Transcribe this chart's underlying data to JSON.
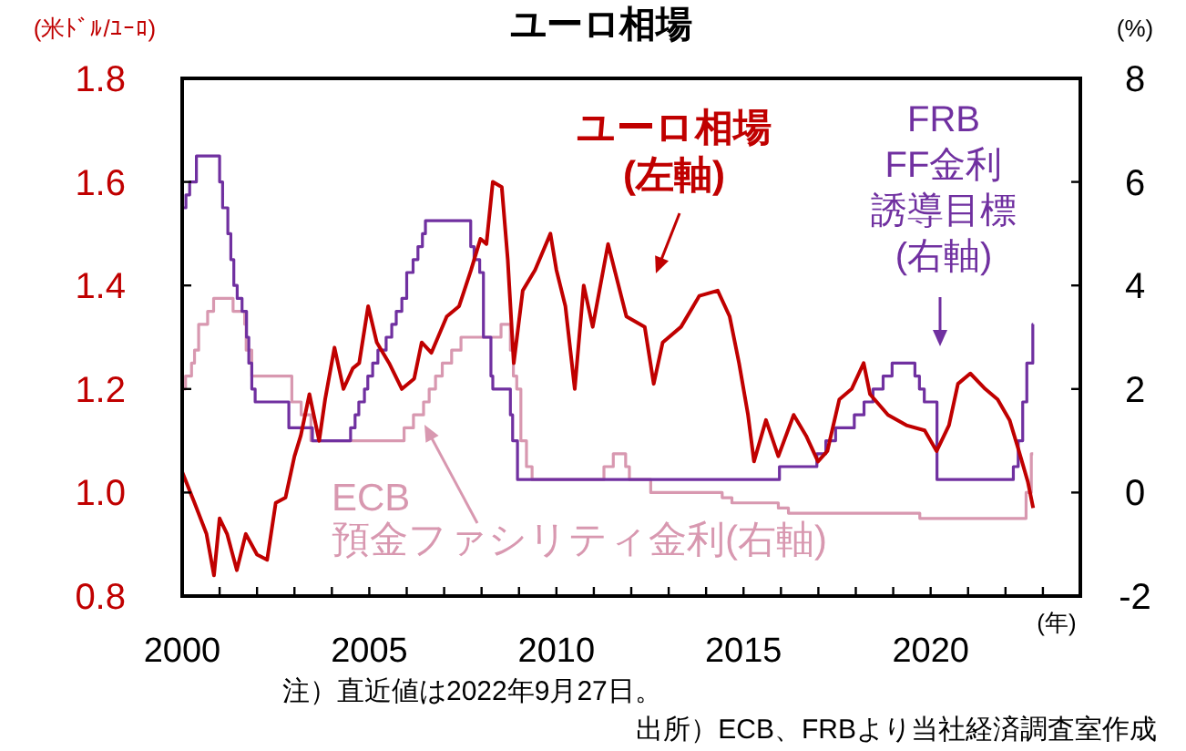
{
  "chart_data": {
    "type": "line",
    "title": "ユーロ相場",
    "ylabel": "(米ﾄﾞﾙ/ﾕｰﾛ)",
    "y2label": "(%)",
    "xlabel": "(年)",
    "xlim": [
      2000,
      2024
    ],
    "xticks": [
      2000,
      {
        "value": 2001,
        "label": null
      },
      {
        "value": 2002,
        "label": null
      },
      {
        "value": 2003,
        "label": null
      },
      {
        "value": 2004,
        "label": null
      },
      2005,
      {
        "value": 2006,
        "label": null
      },
      {
        "value": 2007,
        "label": null
      },
      {
        "value": 2008,
        "label": null
      },
      {
        "value": 2009,
        "label": null
      },
      2010,
      {
        "value": 2011,
        "label": null
      },
      {
        "value": 2012,
        "label": null
      },
      {
        "value": 2013,
        "label": null
      },
      {
        "value": 2014,
        "label": null
      },
      2015,
      {
        "value": 2016,
        "label": null
      },
      {
        "value": 2017,
        "label": null
      },
      {
        "value": 2018,
        "label": null
      },
      {
        "value": 2019,
        "label": null
      },
      2020,
      {
        "value": 2021,
        "label": null
      },
      {
        "value": 2022,
        "label": null
      },
      {
        "value": 2023,
        "label": null
      }
    ],
    "ylim": [
      0.8,
      1.8
    ],
    "yticks": [
      {
        "value": 0.8,
        "label": "0.8"
      },
      {
        "value": 1.0,
        "label": "1.0"
      },
      {
        "value": 1.2,
        "label": "1.2"
      },
      {
        "value": 1.4,
        "label": "1.4"
      },
      {
        "value": 1.6,
        "label": "1.6"
      },
      {
        "value": 1.8,
        "label": "1.8"
      }
    ],
    "y2lim": [
      -2,
      8
    ],
    "y2ticks": [
      -2,
      0,
      2,
      4,
      6,
      8
    ],
    "grid": false,
    "series": [
      {
        "name": "ECB 預金ファシリティ金利(右軸)",
        "type": "step",
        "axis": "y2",
        "color": "#d898b0",
        "x": [
          2000.0,
          2000.09,
          2000.25,
          2000.33,
          2000.44,
          2000.68,
          2000.84,
          2001.36,
          2001.67,
          2001.71,
          2001.86,
          2002.93,
          2003.18,
          2003.44,
          2005.93,
          2006.18,
          2006.45,
          2006.6,
          2006.77,
          2006.95,
          2007.2,
          2007.45,
          2008.52,
          2008.77,
          2008.85,
          2008.94,
          2009.05,
          2009.2,
          2009.35,
          2011.27,
          2011.52,
          2011.85,
          2011.95,
          2012.52,
          2014.43,
          2014.69,
          2015.93,
          2016.2,
          2019.71,
          2022.55,
          2022.69,
          2022.74
        ],
        "values": [
          2.0,
          2.25,
          2.5,
          2.75,
          3.25,
          3.5,
          3.75,
          3.5,
          3.25,
          2.75,
          2.25,
          1.75,
          1.5,
          1.0,
          1.25,
          1.5,
          1.75,
          2.0,
          2.25,
          2.5,
          2.75,
          3.0,
          3.25,
          2.75,
          2.25,
          2.0,
          1.0,
          0.5,
          0.25,
          0.5,
          0.75,
          0.5,
          0.25,
          0.0,
          -0.1,
          -0.2,
          -0.3,
          -0.4,
          -0.5,
          0.0,
          0.75,
          0.75
        ]
      },
      {
        "name": "FRB FF金利誘導目標(右軸)",
        "type": "step",
        "axis": "y2",
        "color": "#7030a0",
        "x": [
          2000.0,
          2000.1,
          2000.2,
          2000.38,
          2001.0,
          2001.08,
          2001.22,
          2001.3,
          2001.38,
          2001.47,
          2001.6,
          2001.72,
          2001.78,
          2001.86,
          2001.95,
          2002.85,
          2003.48,
          2004.5,
          2004.62,
          2004.72,
          2004.87,
          2004.96,
          2005.09,
          2005.23,
          2005.45,
          2005.6,
          2005.72,
          2005.87,
          2006.0,
          2006.17,
          2006.3,
          2006.42,
          2006.5,
          2007.71,
          2007.8,
          2007.95,
          2008.05,
          2008.25,
          2008.3,
          2008.77,
          2008.83,
          2008.96,
          2015.96,
          2016.96,
          2017.2,
          2017.46,
          2017.96,
          2018.22,
          2018.46,
          2018.73,
          2018.97,
          2019.58,
          2019.7,
          2019.83,
          2020.17,
          2022.21,
          2022.34,
          2022.46,
          2022.57,
          2022.73,
          2022.74
        ],
        "values": [
          5.5,
          5.75,
          6.0,
          6.5,
          6.0,
          5.5,
          5.0,
          4.5,
          4.0,
          3.75,
          3.5,
          3.0,
          2.5,
          2.0,
          1.75,
          1.25,
          1.0,
          1.25,
          1.5,
          1.75,
          2.0,
          2.25,
          2.5,
          2.75,
          3.0,
          3.25,
          3.5,
          3.75,
          4.25,
          4.5,
          4.75,
          5.0,
          5.25,
          4.75,
          4.5,
          4.25,
          3.0,
          2.25,
          2.0,
          1.5,
          1.0,
          0.25,
          0.5,
          0.75,
          1.0,
          1.25,
          1.5,
          1.75,
          2.0,
          2.25,
          2.5,
          2.25,
          2.0,
          1.75,
          0.25,
          0.5,
          1.0,
          1.75,
          2.5,
          3.25,
          3.25
        ]
      },
      {
        "name": "ユーロ相場(左軸)",
        "type": "line",
        "color": "#c00000",
        "x": [
          2000.0,
          2000.33,
          2000.65,
          2000.85,
          2001.0,
          2001.2,
          2001.46,
          2001.7,
          2002.0,
          2002.27,
          2002.5,
          2002.76,
          2003.0,
          2003.17,
          2003.4,
          2003.66,
          2003.82,
          2004.07,
          2004.31,
          2004.56,
          2004.73,
          2004.97,
          2005.2,
          2005.53,
          2005.87,
          2006.2,
          2006.4,
          2006.66,
          2007.07,
          2007.4,
          2007.72,
          2007.97,
          2008.13,
          2008.3,
          2008.54,
          2008.7,
          2008.86,
          2009.1,
          2009.43,
          2009.84,
          2010.0,
          2010.24,
          2010.49,
          2010.73,
          2010.97,
          2011.38,
          2011.87,
          2012.36,
          2012.6,
          2012.84,
          2013.33,
          2013.82,
          2014.31,
          2014.63,
          2014.88,
          2015.12,
          2015.28,
          2015.6,
          2015.93,
          2016.34,
          2016.67,
          2016.99,
          2017.24,
          2017.56,
          2017.89,
          2018.21,
          2018.38,
          2018.86,
          2019.35,
          2019.84,
          2020.16,
          2020.49,
          2020.73,
          2021.06,
          2021.46,
          2021.79,
          2022.11,
          2022.36,
          2022.6,
          2022.74
        ],
        "values": [
          1.04,
          0.98,
          0.92,
          0.84,
          0.95,
          0.92,
          0.85,
          0.92,
          0.88,
          0.87,
          0.98,
          0.99,
          1.07,
          1.11,
          1.19,
          1.1,
          1.18,
          1.28,
          1.2,
          1.24,
          1.25,
          1.36,
          1.29,
          1.25,
          1.2,
          1.22,
          1.29,
          1.27,
          1.34,
          1.36,
          1.43,
          1.49,
          1.48,
          1.6,
          1.59,
          1.45,
          1.25,
          1.39,
          1.43,
          1.5,
          1.43,
          1.36,
          1.2,
          1.4,
          1.32,
          1.48,
          1.34,
          1.32,
          1.21,
          1.29,
          1.32,
          1.38,
          1.39,
          1.34,
          1.25,
          1.15,
          1.06,
          1.14,
          1.07,
          1.15,
          1.11,
          1.06,
          1.08,
          1.18,
          1.2,
          1.25,
          1.19,
          1.15,
          1.13,
          1.12,
          1.08,
          1.13,
          1.21,
          1.23,
          1.2,
          1.18,
          1.14,
          1.08,
          1.02,
          0.97
        ]
      }
    ],
    "annotations": [
      "注）直近値は2022年9月27日。",
      "出所）ECB、FRBより当社経済調査室作成"
    ]
  }
}
